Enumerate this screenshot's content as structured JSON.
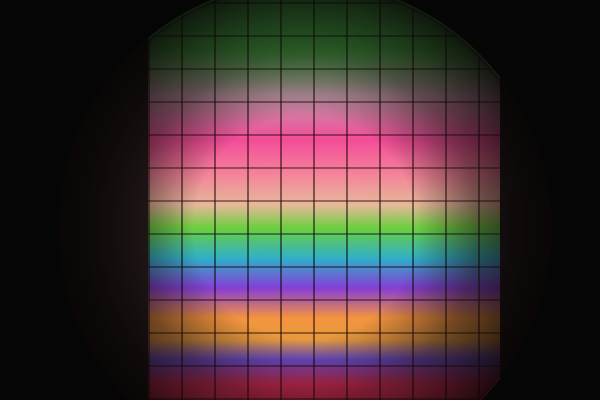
{
  "image": {
    "subject": "silicon-wafer",
    "colors": {
      "background": "#050505",
      "bands": [
        "#3fcf4a",
        "#47c84a",
        "#c8a0b0",
        "#ff4fa0",
        "#ff8aa0",
        "#f0c0a0",
        "#6fd840",
        "#30b8d0",
        "#8a40e0",
        "#ff9a40",
        "#f0a040",
        "#7050e0",
        "#ff3060"
      ]
    }
  }
}
